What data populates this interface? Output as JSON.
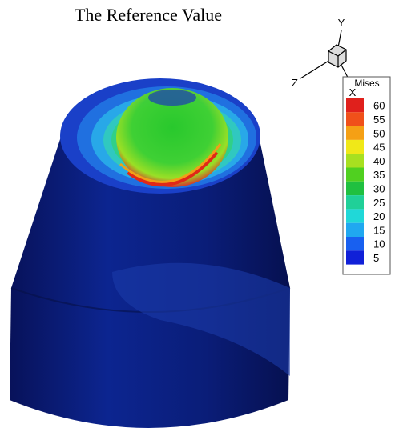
{
  "title": "The Reference Value",
  "axes": {
    "x": "X",
    "y": "Y",
    "z": "Z"
  },
  "legend": {
    "title": "Mises",
    "levels": [
      {
        "value": 60,
        "color": "#e0201c"
      },
      {
        "value": 55,
        "color": "#f0501a"
      },
      {
        "value": 50,
        "color": "#f5a015"
      },
      {
        "value": 45,
        "color": "#f0e818"
      },
      {
        "value": 40,
        "color": "#a8e020"
      },
      {
        "value": 35,
        "color": "#50d020"
      },
      {
        "value": 30,
        "color": "#20c040"
      },
      {
        "value": 25,
        "color": "#20d098"
      },
      {
        "value": 20,
        "color": "#20d8d8"
      },
      {
        "value": 15,
        "color": "#20a8f0"
      },
      {
        "value": 10,
        "color": "#1860f0"
      },
      {
        "value": 5,
        "color": "#1020d8"
      }
    ]
  }
}
